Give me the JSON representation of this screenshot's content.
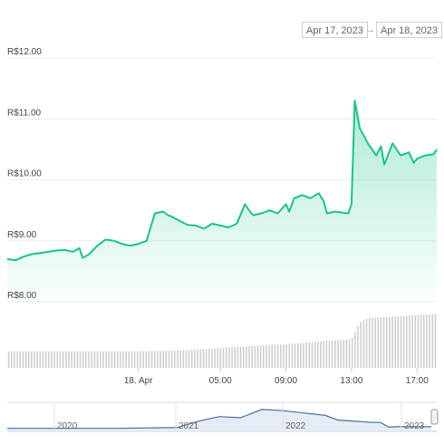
{
  "date_range": {
    "from": "Apr 17, 2023",
    "arrow": "→",
    "to": "Apr 18, 2023"
  },
  "colors": {
    "line": "#16c784",
    "fill": "#16c784",
    "volume": "#cfcfcf",
    "navigator_line": "#4a6fa5",
    "grid": "#ececec"
  },
  "chart_data": {
    "type": "line",
    "currency_prefix": "R$",
    "ylabel": "",
    "ylim": [
      8.0,
      12.0
    ],
    "y_ticks": [
      "R$12.00",
      "R$11.00",
      "R$10.00",
      "R$9.00",
      "R$8.00"
    ],
    "x_ticks": [
      "18. Apr",
      "05:00",
      "09:00",
      "13:00",
      "17:00"
    ],
    "x_tick_hours": [
      0,
      5,
      9,
      13,
      17
    ],
    "x_range_hours": [
      -8,
      18.2
    ],
    "series": [
      {
        "x": [
          -8,
          -7.5,
          -7,
          -6.5,
          -6,
          -5.5,
          -5,
          -4.5,
          -4,
          -3.6,
          -3.4,
          -3,
          -2.5,
          -2,
          -1.5,
          -1,
          -0.5,
          0,
          0.5,
          1,
          1.5,
          1.8,
          2.0,
          2.5,
          3,
          3.5,
          4,
          4.5,
          5,
          5.5,
          6,
          6.5,
          6.8,
          7.0,
          7.5,
          8,
          8.5,
          9.0,
          9.2,
          9.5,
          10,
          10.5,
          11,
          11.3,
          11.5,
          12,
          12.5,
          12.8,
          13.0,
          13.2,
          13.5,
          14,
          14.5,
          14.8,
          15,
          15.5,
          16,
          16.5,
          16.8,
          17,
          17.5,
          18,
          18.2
        ],
        "values": [
          8.7,
          8.68,
          8.74,
          8.78,
          8.8,
          8.82,
          8.84,
          8.85,
          8.82,
          8.88,
          8.72,
          8.78,
          8.92,
          9.02,
          9.0,
          8.95,
          8.92,
          8.95,
          9.0,
          9.45,
          9.48,
          9.42,
          9.4,
          9.33,
          9.26,
          9.25,
          9.2,
          9.28,
          9.25,
          9.22,
          9.28,
          9.6,
          9.48,
          9.42,
          9.45,
          9.5,
          9.45,
          9.6,
          9.48,
          9.7,
          9.75,
          9.7,
          9.78,
          9.65,
          9.45,
          9.48,
          9.46,
          9.45,
          9.6,
          11.3,
          10.85,
          10.6,
          10.4,
          10.55,
          10.25,
          10.6,
          10.4,
          10.45,
          10.28,
          10.35,
          10.4,
          10.42,
          10.5
        ]
      }
    ],
    "volume": {
      "x": [
        -8,
        0,
        3,
        6,
        9,
        12,
        13.0,
        13.5,
        14,
        18.2
      ],
      "values": [
        0.3,
        0.3,
        0.32,
        0.38,
        0.43,
        0.5,
        0.52,
        0.82,
        0.9,
        0.98
      ]
    },
    "navigator": {
      "labels": [
        "2020",
        "2021",
        "2022",
        "2023"
      ],
      "x": [
        0,
        0.25,
        0.4,
        0.45,
        0.5,
        0.55,
        0.6,
        0.65,
        0.7,
        0.75,
        0.78,
        0.82,
        0.86,
        0.88,
        0.9,
        0.92,
        0.95,
        1.0
      ],
      "values": [
        0.05,
        0.05,
        0.08,
        0.35,
        0.55,
        0.5,
        0.85,
        0.8,
        0.7,
        0.6,
        0.4,
        0.35,
        0.3,
        0.3,
        0.1,
        0.12,
        0.12,
        0.12
      ]
    }
  }
}
